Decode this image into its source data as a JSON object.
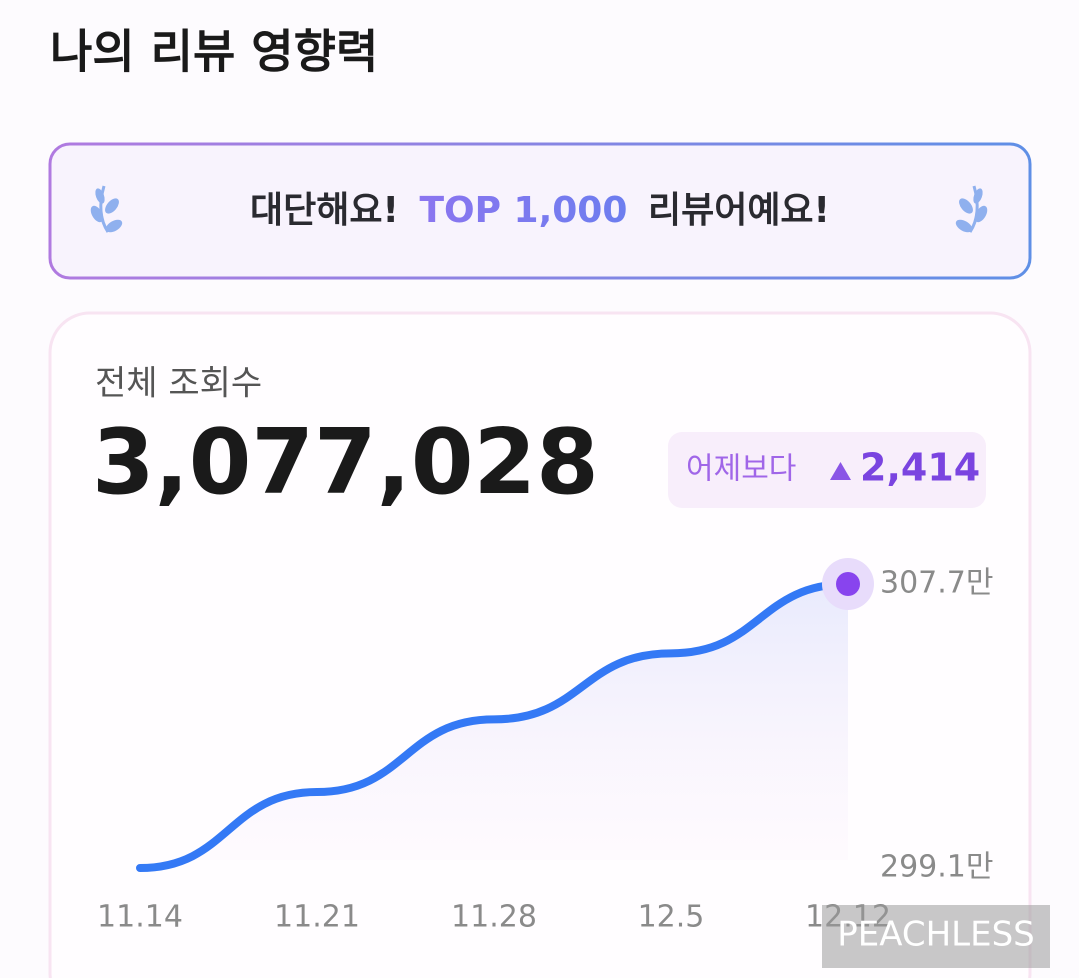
{
  "header": {
    "title": "나의 리뷰 영향력"
  },
  "banner": {
    "parts": [
      "대단해요!",
      "TOP 1,000",
      "리뷰어예요!"
    ]
  },
  "card": {
    "label": "전체 조회수",
    "total": "3,077,028",
    "change_label": "어제보다",
    "change_value": "2,414"
  },
  "chart_data": {
    "type": "line",
    "categories": [
      "11.14",
      "11.21",
      "11.28",
      "12.5",
      "12.12"
    ],
    "series": [
      {
        "name": "전체 조회수",
        "color": "#3479f5",
        "values": [
          299.1,
          301.4,
          303.6,
          305.6,
          307.7
        ]
      }
    ],
    "ylim": [
      299.1,
      307.7
    ],
    "yticks": [
      {
        "value": 299.1,
        "label": "299.1만"
      },
      {
        "value": 307.7,
        "label": "307.7만"
      }
    ],
    "grid": false
  },
  "watermark": "PEACHLESS"
}
